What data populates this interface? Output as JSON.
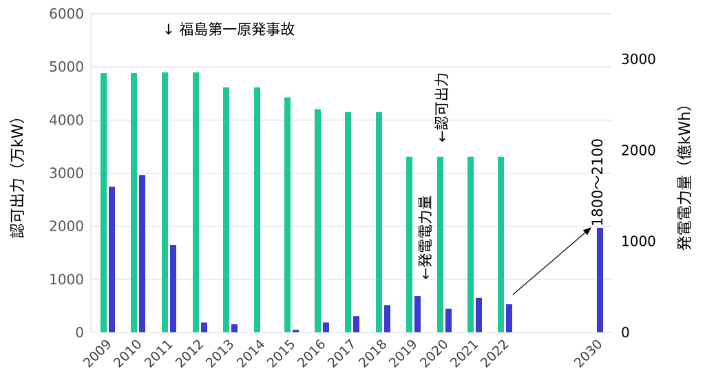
{
  "chart_data": {
    "type": "bar",
    "categories": [
      "2009",
      "2010",
      "2011",
      "2012",
      "2013",
      "2014",
      "2015",
      "2016",
      "2017",
      "2018",
      "2019",
      "2020",
      "2021",
      "2022",
      "2030"
    ],
    "series": [
      {
        "values": [
          4885,
          4885,
          4896,
          4896,
          4614,
          4614,
          4426,
          4205,
          4148,
          4148,
          3308,
          3308,
          3308,
          3308,
          null
        ],
        "color": "#1ec896",
        "axis": "left"
      },
      {
        "values": [
          1600,
          1730,
          960,
          110,
          90,
          0,
          30,
          110,
          180,
          300,
          400,
          260,
          380,
          310,
          1150
        ],
        "color": "#3b3bd1",
        "axis": "right"
      }
    ],
    "ylabel": "認可出力（万kW）",
    "y2label": "発電電力量（億kWh）",
    "ylim": [
      0,
      6000
    ],
    "yticks": [
      0,
      1000,
      2000,
      3000,
      4000,
      5000,
      6000
    ],
    "y2lim": [
      0,
      3500
    ],
    "y2ticks": [
      0,
      1000,
      2000,
      3000
    ],
    "grid": true,
    "legend": "none",
    "annotations": {
      "fukushima": "↓ 福島第一原発事故",
      "capacity": "←認可出力",
      "generation": "←発電電力量",
      "target_2030": "1800～2100"
    }
  }
}
